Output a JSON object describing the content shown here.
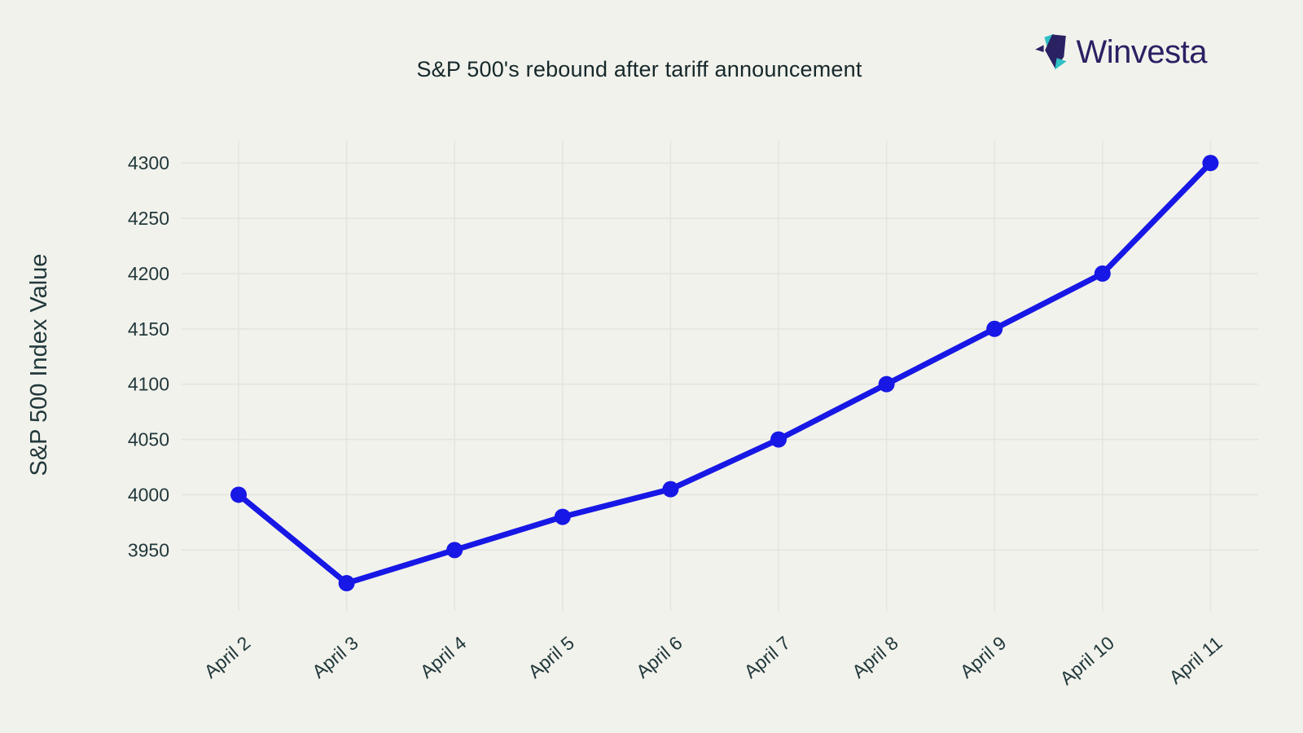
{
  "logo": {
    "text": "Winvesta"
  },
  "colors": {
    "background": "#f2f2ec",
    "line": "#1717e6",
    "marker": "#1717e6",
    "grid": "#e4e5de",
    "axis_text": "#21383b",
    "title_text": "#16282a",
    "logo_navy": "#2a2163",
    "logo_teal": "#2fc0c4"
  },
  "chart_data": {
    "type": "line",
    "title": "S&P 500's rebound after tariff announcement",
    "xlabel": "",
    "ylabel": "S&P 500 Index Value",
    "categories": [
      "April 2",
      "April 3",
      "April 4",
      "April 5",
      "April 6",
      "April 7",
      "April 8",
      "April 9",
      "April 10",
      "April 11"
    ],
    "series": [
      {
        "name": "S&P 500 Index Value",
        "values": [
          4000,
          3920,
          3950,
          3980,
          4005,
          4050,
          4100,
          4150,
          4200,
          4300
        ]
      }
    ],
    "yticks": [
      3950,
      4000,
      4050,
      4100,
      4150,
      4200,
      4250,
      4300
    ],
    "ylim": [
      3895,
      4320
    ],
    "grid": true,
    "legend_position": "none",
    "marker": "circle",
    "x_tick_rotation": -40
  }
}
